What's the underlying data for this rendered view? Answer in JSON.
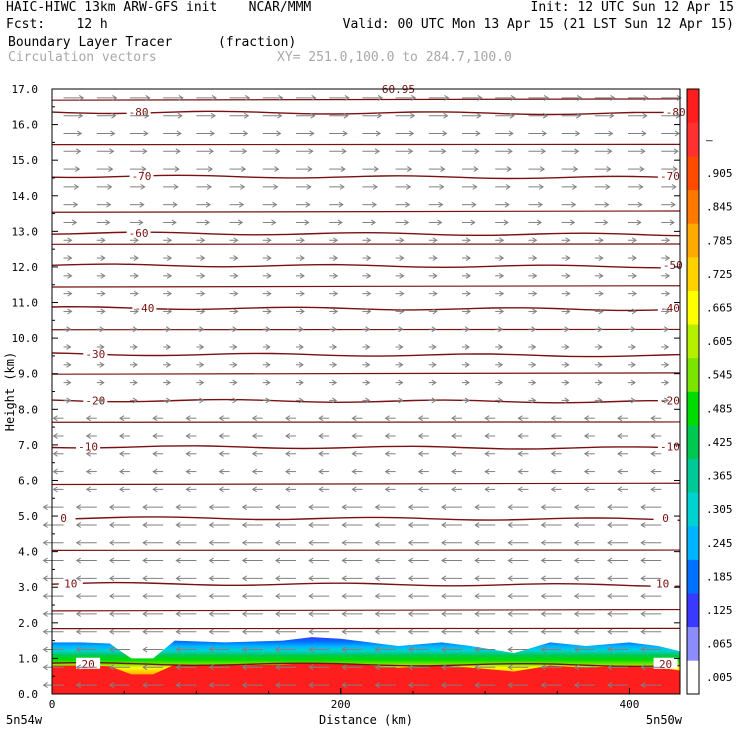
{
  "header": {
    "line1_left": "HAIC-HIWC 13km ARW-GFS init    NCAR/MMM",
    "line1_right": "Init: 12 UTC Sun 12 Apr 15",
    "line2_left": "Fcst:    12 h",
    "line2_right": "Valid: 00 UTC Mon 13 Apr 15 (21 LST Sun 12 Apr 15)",
    "field_name": "Boundary Layer Tracer",
    "field_units": "(fraction)",
    "vector_label": "Circulation vectors",
    "xy_range": "XY= 251.0,100.0 to 284.7,100.0"
  },
  "colors": {
    "contour": "#7a1010",
    "vector": "#808080",
    "frame": "#000000"
  },
  "chart_data": {
    "type": "heatmap",
    "xlabel": "Distance (km)",
    "ylabel": "Height (km)",
    "xlim": [
      0,
      435
    ],
    "ylim": [
      0,
      17
    ],
    "x_ticks": [
      0,
      200,
      400
    ],
    "x_tick_labels": [
      "0",
      "200",
      "400"
    ],
    "y_ticks": [
      0,
      1,
      2,
      3,
      4,
      5,
      6,
      7,
      8,
      9,
      10,
      11,
      12,
      13,
      14,
      15,
      16,
      17
    ],
    "y_tick_labels": [
      "0.0",
      "1.0",
      "2.0",
      "3.0",
      "4.0",
      "5.0",
      "6.0",
      "7.0",
      "8.0",
      "9.0",
      "10.0",
      "11.0",
      "12.0",
      "13.0",
      "14.0",
      "15.0",
      "16.0",
      "17.0"
    ],
    "left_location": "5n54w",
    "right_location": "5n50w",
    "colorbar": {
      "labels": [
        ".005",
        ".065",
        ".125",
        ".185",
        ".245",
        ".305",
        ".365",
        ".425",
        ".485",
        ".545",
        ".605",
        ".665",
        ".725",
        ".785",
        ".845",
        ".905",
        "–"
      ],
      "colors": [
        "#ffffff",
        "#8c8cff",
        "#3a3aff",
        "#0070ff",
        "#00b4ff",
        "#00d2d2",
        "#00c896",
        "#00c850",
        "#00dc00",
        "#7ae600",
        "#b4f000",
        "#ffff00",
        "#ffd200",
        "#ffaa00",
        "#ff7800",
        "#ff4b00",
        "#ff3030",
        "#ff1e1e"
      ]
    },
    "tracer_top_km": [
      [
        0,
        1.45
      ],
      [
        20,
        1.45
      ],
      [
        40,
        1.42
      ],
      [
        55,
        1.0
      ],
      [
        70,
        1.0
      ],
      [
        85,
        1.5
      ],
      [
        120,
        1.45
      ],
      [
        160,
        1.5
      ],
      [
        180,
        1.6
      ],
      [
        200,
        1.55
      ],
      [
        220,
        1.45
      ],
      [
        240,
        1.35
      ],
      [
        270,
        1.45
      ],
      [
        290,
        1.35
      ],
      [
        320,
        1.15
      ],
      [
        345,
        1.45
      ],
      [
        370,
        1.35
      ],
      [
        400,
        1.45
      ],
      [
        420,
        1.35
      ],
      [
        435,
        1.2
      ]
    ],
    "temperature_contours": [
      {
        "label": "-80",
        "height_km": 16.35,
        "label_positions_km": [
          60,
          432
        ]
      },
      {
        "label": "-70",
        "height_km": 14.55,
        "label_positions_km": [
          62,
          428
        ]
      },
      {
        "label": "-60",
        "height_km": 12.95,
        "label_positions_km": [
          60
        ]
      },
      {
        "label": "-50",
        "height_km": 12.05,
        "label_positions_km": [
          430
        ]
      },
      {
        "label": "-40",
        "height_km": 10.85,
        "label_positions_km": [
          64,
          428
        ]
      },
      {
        "label": "-30",
        "height_km": 9.55,
        "label_positions_km": [
          30
        ]
      },
      {
        "label": "-20",
        "height_km": 8.25,
        "label_positions_km": [
          30,
          428
        ]
      },
      {
        "label": "-10",
        "height_km": 6.95,
        "label_positions_km": [
          25,
          428
        ]
      },
      {
        "label": "0",
        "height_km": 4.95,
        "label_positions_km": [
          8,
          425
        ]
      },
      {
        "label": "10",
        "height_km": 3.1,
        "label_positions_km": [
          13,
          423
        ]
      },
      {
        "label": "20",
        "height_km": 0.85,
        "label_positions_km": [
          25,
          425
        ]
      }
    ],
    "top_partial_label": "60.95"
  }
}
